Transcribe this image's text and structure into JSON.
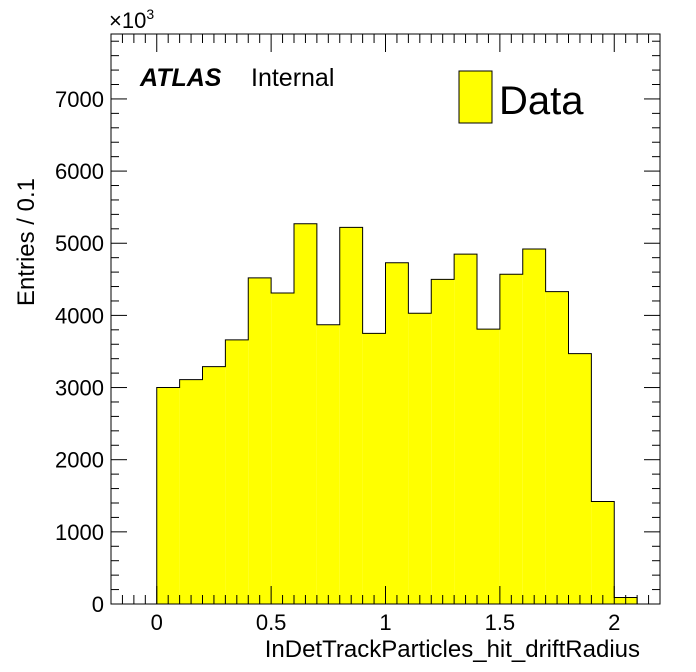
{
  "chart_data": {
    "type": "bar",
    "xlabel": "InDetTrackParticles_hit_driftRadius",
    "ylabel": "Entries / 0.1",
    "y_multiplier": "×10",
    "y_multiplier_exp": "3",
    "xlim": [
      -0.2,
      2.2
    ],
    "ylim": [
      0,
      7900
    ],
    "x_ticks": [
      0,
      0.5,
      1,
      1.5,
      2
    ],
    "x_tick_labels": [
      "0",
      "0.5",
      "1",
      "1.5",
      "2"
    ],
    "y_ticks": [
      0,
      1000,
      2000,
      3000,
      4000,
      5000,
      6000,
      7000
    ],
    "y_tick_labels": [
      "0",
      "1000",
      "2000",
      "3000",
      "4000",
      "5000",
      "6000",
      "7000"
    ],
    "bin_width": 0.1,
    "bin_edges": [
      0,
      0.1,
      0.2,
      0.3,
      0.4,
      0.5,
      0.6,
      0.7,
      0.8,
      0.9,
      1.0,
      1.1,
      1.2,
      1.3,
      1.4,
      1.5,
      1.6,
      1.7,
      1.8,
      1.9,
      2.0,
      2.1
    ],
    "values": [
      3000,
      3110,
      3290,
      3660,
      4520,
      4310,
      5270,
      3870,
      5220,
      3750,
      4730,
      4030,
      4500,
      4850,
      3810,
      4570,
      4920,
      4330,
      3470,
      1420,
      90
    ],
    "fill_color": "#ffff00",
    "edge_color": "#000000",
    "grid": false,
    "legend_position": "top-right",
    "series": [
      {
        "name": "Data",
        "values": [
          3000,
          3110,
          3290,
          3660,
          4520,
          4310,
          5270,
          3870,
          5220,
          3750,
          4730,
          4030,
          4500,
          4850,
          3810,
          4570,
          4920,
          4330,
          3470,
          1420,
          90
        ]
      }
    ],
    "annotations": {
      "experiment": "ATLAS",
      "status": "Internal"
    }
  }
}
